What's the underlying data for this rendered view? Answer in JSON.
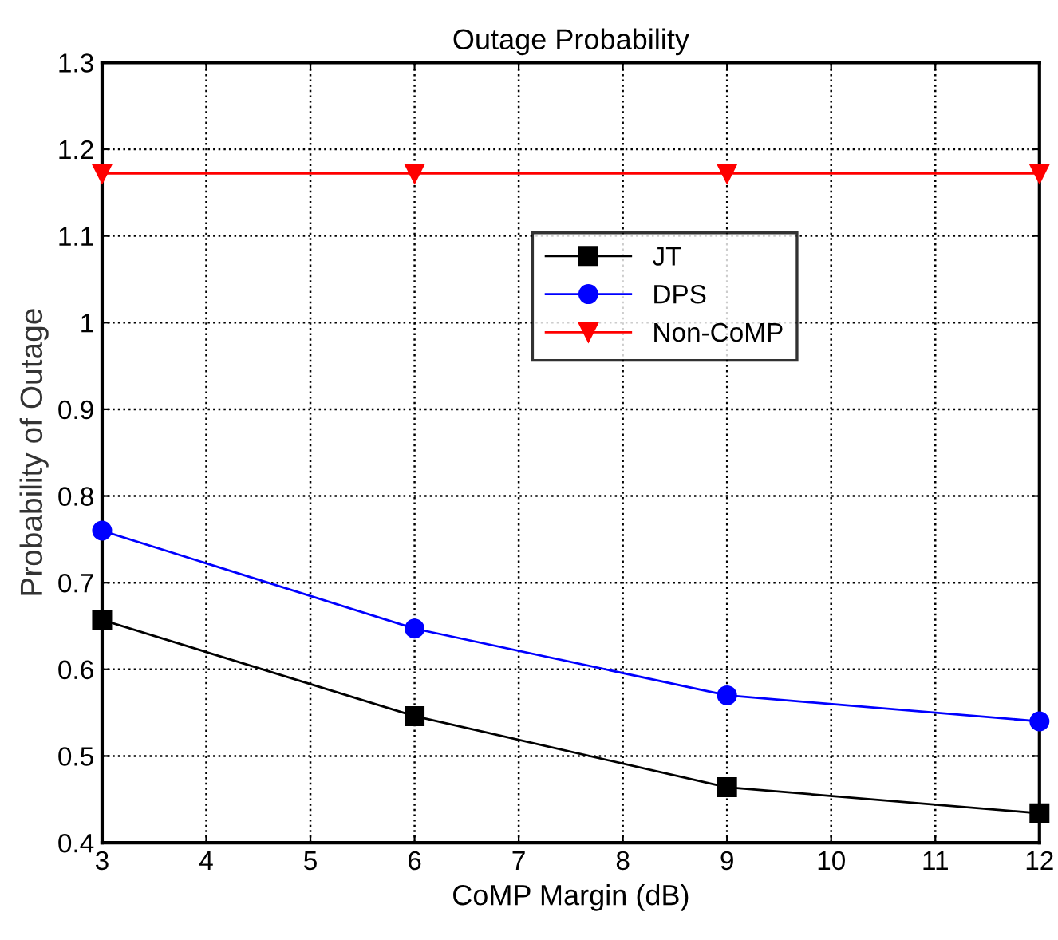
{
  "chart_data": {
    "type": "line",
    "title": "Outage Probability",
    "xlabel": "CoMP Margin (dB)",
    "ylabel": "Probability of Outage",
    "x": [
      3,
      6,
      9,
      12
    ],
    "series": [
      {
        "name": "JT",
        "color": "#000000",
        "marker": "square",
        "values": [
          0.657,
          0.546,
          0.464,
          0.434
        ]
      },
      {
        "name": "DPS",
        "color": "#0000ff",
        "marker": "circle",
        "values": [
          0.76,
          0.647,
          0.57,
          0.54
        ]
      },
      {
        "name": "Non-CoMP",
        "color": "#ff0000",
        "marker": "triangle",
        "values": [
          1.172,
          1.172,
          1.172,
          1.172
        ]
      }
    ],
    "xlim": [
      3,
      12
    ],
    "xticks": [
      3,
      4,
      5,
      6,
      7,
      8,
      9,
      10,
      11,
      12
    ],
    "ylim": [
      0.4,
      1.3
    ],
    "yticks": [
      0.4,
      0.5,
      0.6,
      0.7,
      0.8,
      0.9,
      1,
      1.1,
      1.2,
      1.3
    ],
    "grid": true,
    "legend": "right",
    "line_style": "solid"
  }
}
